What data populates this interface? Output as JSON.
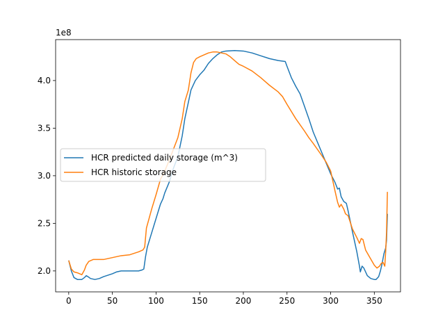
{
  "chart_data": {
    "type": "line",
    "offset_text": "1e8",
    "xlim": [
      -15,
      380
    ],
    "ylim": [
      1.78,
      4.43
    ],
    "x_ticks": [
      0,
      50,
      100,
      150,
      200,
      250,
      300,
      350
    ],
    "x_tick_labels": [
      "0",
      "50",
      "100",
      "150",
      "200",
      "250",
      "300",
      "350"
    ],
    "y_ticks": [
      2.0,
      2.5,
      3.0,
      3.5,
      4.0
    ],
    "y_tick_labels": [
      "2.0",
      "2.5",
      "3.0",
      "3.5",
      "4.0"
    ],
    "legend_position": "center-left",
    "series": [
      {
        "name": "HCR predicted daily storage (m^3)",
        "color": "#1f77b4",
        "points": [
          [
            0,
            2.11
          ],
          [
            3,
            2.0
          ],
          [
            6,
            1.93
          ],
          [
            10,
            1.91
          ],
          [
            15,
            1.91
          ],
          [
            18,
            1.93
          ],
          [
            20,
            1.95
          ],
          [
            22,
            1.94
          ],
          [
            25,
            1.92
          ],
          [
            30,
            1.91
          ],
          [
            35,
            1.92
          ],
          [
            40,
            1.94
          ],
          [
            50,
            1.97
          ],
          [
            55,
            1.99
          ],
          [
            60,
            2.0
          ],
          [
            70,
            2.0
          ],
          [
            80,
            2.0
          ],
          [
            84,
            2.01
          ],
          [
            86,
            2.02
          ],
          [
            88,
            2.15
          ],
          [
            90,
            2.25
          ],
          [
            95,
            2.4
          ],
          [
            100,
            2.55
          ],
          [
            105,
            2.7
          ],
          [
            108,
            2.76
          ],
          [
            110,
            2.82
          ],
          [
            115,
            2.93
          ],
          [
            120,
            3.08
          ],
          [
            125,
            3.2
          ],
          [
            130,
            3.42
          ],
          [
            133,
            3.6
          ],
          [
            137,
            3.77
          ],
          [
            140,
            3.9
          ],
          [
            145,
            4.0
          ],
          [
            150,
            4.06
          ],
          [
            155,
            4.11
          ],
          [
            160,
            4.18
          ],
          [
            165,
            4.23
          ],
          [
            170,
            4.27
          ],
          [
            175,
            4.3
          ],
          [
            180,
            4.31
          ],
          [
            190,
            4.315
          ],
          [
            200,
            4.31
          ],
          [
            210,
            4.29
          ],
          [
            220,
            4.26
          ],
          [
            230,
            4.23
          ],
          [
            240,
            4.21
          ],
          [
            248,
            4.2
          ],
          [
            250,
            4.15
          ],
          [
            255,
            4.03
          ],
          [
            260,
            3.94
          ],
          [
            265,
            3.86
          ],
          [
            270,
            3.73
          ],
          [
            275,
            3.6
          ],
          [
            280,
            3.46
          ],
          [
            285,
            3.35
          ],
          [
            290,
            3.24
          ],
          [
            295,
            3.13
          ],
          [
            300,
            3.02
          ],
          [
            305,
            2.93
          ],
          [
            308,
            2.86
          ],
          [
            310,
            2.87
          ],
          [
            312,
            2.78
          ],
          [
            315,
            2.73
          ],
          [
            318,
            2.71
          ],
          [
            320,
            2.63
          ],
          [
            325,
            2.41
          ],
          [
            330,
            2.2
          ],
          [
            333,
            2.05
          ],
          [
            334,
            1.99
          ],
          [
            336,
            2.05
          ],
          [
            338,
            2.03
          ],
          [
            342,
            1.95
          ],
          [
            346,
            1.92
          ],
          [
            350,
            1.91
          ],
          [
            352,
            1.91
          ],
          [
            355,
            1.94
          ],
          [
            357,
            2.0
          ],
          [
            359,
            2.08
          ],
          [
            361,
            2.18
          ],
          [
            363,
            2.24
          ],
          [
            364,
            2.32
          ],
          [
            365,
            2.6
          ]
        ]
      },
      {
        "name": "HCR historic storage",
        "color": "#ff7f0e",
        "points": [
          [
            0,
            2.11
          ],
          [
            3,
            2.02
          ],
          [
            6,
            1.99
          ],
          [
            10,
            1.98
          ],
          [
            15,
            1.96
          ],
          [
            18,
            2.01
          ],
          [
            20,
            2.06
          ],
          [
            23,
            2.1
          ],
          [
            28,
            2.12
          ],
          [
            33,
            2.12
          ],
          [
            40,
            2.12
          ],
          [
            45,
            2.13
          ],
          [
            50,
            2.14
          ],
          [
            55,
            2.15
          ],
          [
            60,
            2.16
          ],
          [
            70,
            2.17
          ],
          [
            80,
            2.2
          ],
          [
            85,
            2.22
          ],
          [
            87,
            2.25
          ],
          [
            89,
            2.45
          ],
          [
            92,
            2.55
          ],
          [
            95,
            2.65
          ],
          [
            100,
            2.8
          ],
          [
            105,
            2.96
          ],
          [
            110,
            3.05
          ],
          [
            115,
            3.16
          ],
          [
            120,
            3.28
          ],
          [
            125,
            3.4
          ],
          [
            130,
            3.6
          ],
          [
            133,
            3.78
          ],
          [
            137,
            3.9
          ],
          [
            140,
            4.08
          ],
          [
            143,
            4.19
          ],
          [
            146,
            4.23
          ],
          [
            150,
            4.25
          ],
          [
            155,
            4.27
          ],
          [
            160,
            4.29
          ],
          [
            165,
            4.3
          ],
          [
            170,
            4.3
          ],
          [
            175,
            4.29
          ],
          [
            180,
            4.28
          ],
          [
            185,
            4.25
          ],
          [
            190,
            4.21
          ],
          [
            195,
            4.17
          ],
          [
            200,
            4.15
          ],
          [
            210,
            4.1
          ],
          [
            220,
            4.03
          ],
          [
            230,
            3.95
          ],
          [
            240,
            3.88
          ],
          [
            245,
            3.83
          ],
          [
            250,
            3.75
          ],
          [
            260,
            3.6
          ],
          [
            270,
            3.47
          ],
          [
            275,
            3.4
          ],
          [
            280,
            3.34
          ],
          [
            290,
            3.21
          ],
          [
            295,
            3.14
          ],
          [
            300,
            3.05
          ],
          [
            305,
            2.84
          ],
          [
            308,
            2.72
          ],
          [
            310,
            2.67
          ],
          [
            312,
            2.7
          ],
          [
            315,
            2.65
          ],
          [
            317,
            2.6
          ],
          [
            320,
            2.58
          ],
          [
            325,
            2.44
          ],
          [
            330,
            2.35
          ],
          [
            333,
            2.29
          ],
          [
            335,
            2.34
          ],
          [
            337,
            2.33
          ],
          [
            340,
            2.22
          ],
          [
            345,
            2.14
          ],
          [
            350,
            2.06
          ],
          [
            353,
            2.03
          ],
          [
            356,
            2.05
          ],
          [
            358,
            2.08
          ],
          [
            360,
            2.09
          ],
          [
            361,
            2.07
          ],
          [
            362,
            2.05
          ],
          [
            363,
            2.2
          ],
          [
            364,
            2.4
          ],
          [
            365,
            2.83
          ]
        ]
      }
    ]
  }
}
